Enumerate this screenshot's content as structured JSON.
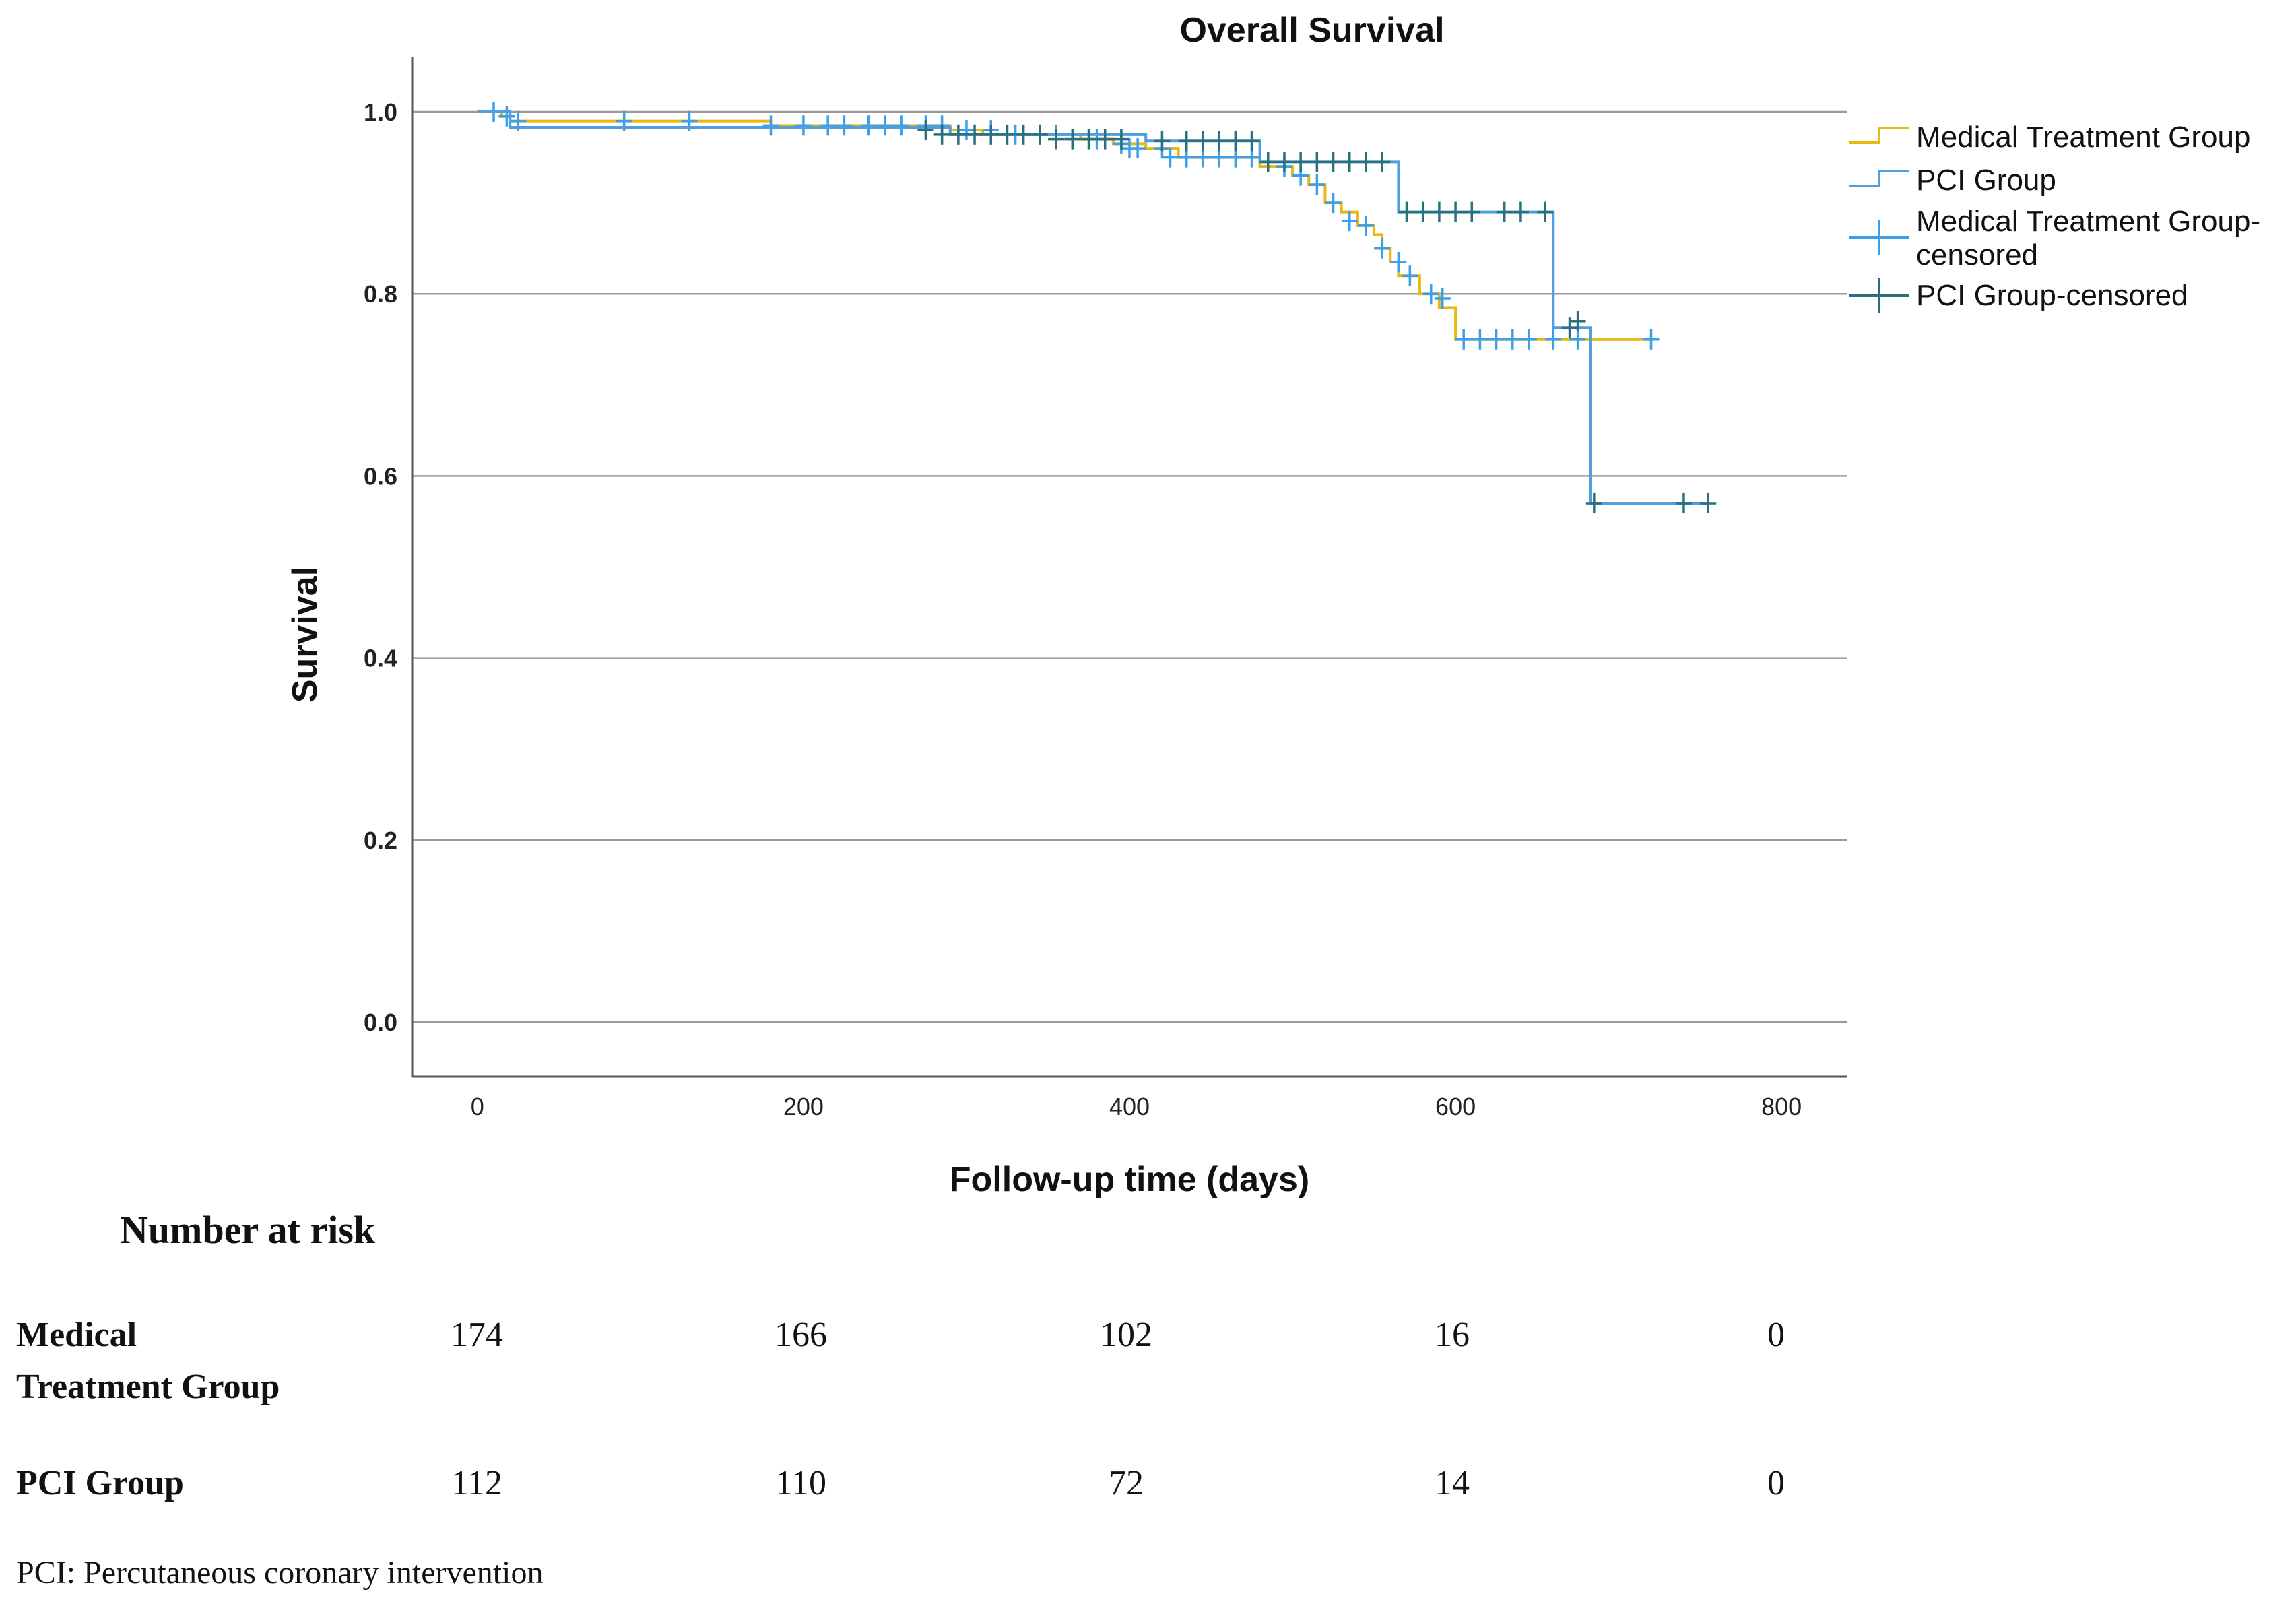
{
  "chart_data": {
    "type": "line",
    "title": "Overall Survival",
    "xlabel": "Follow-up time (days)",
    "ylabel": "Survival",
    "xlim": [
      -40,
      840
    ],
    "ylim": [
      -0.06,
      1.06
    ],
    "x_ticks": [
      0,
      200,
      400,
      600,
      800
    ],
    "x_tick_labels": [
      "0",
      "200",
      "400",
      "600",
      "800"
    ],
    "y_ticks": [
      0.0,
      0.2,
      0.4,
      0.6,
      0.8,
      1.0
    ],
    "y_tick_labels": [
      "0.0",
      "0.2",
      "0.4",
      "0.6",
      "0.8",
      "1.0"
    ],
    "grid": "horizontal",
    "legend_position": "right",
    "legend": [
      {
        "label": "Medical Treatment Group",
        "kind": "line",
        "color": "#e8b80f"
      },
      {
        "label": "PCI Group",
        "kind": "line",
        "color": "#4f9fe0"
      },
      {
        "label": "Medical Treatment Group-censored",
        "kind": "censor",
        "color": "#3aa0ec"
      },
      {
        "label": "PCI Group-censored",
        "kind": "censor",
        "color": "#2a6f7d"
      }
    ],
    "series": [
      {
        "name": "Medical Treatment Group",
        "color": "#e8b80f",
        "censor_color": "#3aa0ec",
        "steps": [
          [
            0,
            1.0
          ],
          [
            15,
            0.995
          ],
          [
            20,
            0.99
          ],
          [
            60,
            0.99
          ],
          [
            90,
            0.99
          ],
          [
            180,
            0.985
          ],
          [
            290,
            0.98
          ],
          [
            310,
            0.975
          ],
          [
            370,
            0.97
          ],
          [
            390,
            0.965
          ],
          [
            410,
            0.96
          ],
          [
            430,
            0.95
          ],
          [
            480,
            0.94
          ],
          [
            500,
            0.93
          ],
          [
            510,
            0.92
          ],
          [
            520,
            0.9
          ],
          [
            530,
            0.89
          ],
          [
            540,
            0.875
          ],
          [
            550,
            0.865
          ],
          [
            555,
            0.85
          ],
          [
            560,
            0.835
          ],
          [
            565,
            0.82
          ],
          [
            578,
            0.8
          ],
          [
            590,
            0.785
          ],
          [
            600,
            0.75
          ],
          [
            720,
            0.75
          ]
        ],
        "censored": [
          [
            10,
            1.0
          ],
          [
            18,
            0.995
          ],
          [
            25,
            0.99
          ],
          [
            90,
            0.99
          ],
          [
            130,
            0.99
          ],
          [
            180,
            0.985
          ],
          [
            200,
            0.985
          ],
          [
            215,
            0.985
          ],
          [
            225,
            0.985
          ],
          [
            240,
            0.985
          ],
          [
            250,
            0.985
          ],
          [
            260,
            0.985
          ],
          [
            275,
            0.985
          ],
          [
            285,
            0.985
          ],
          [
            300,
            0.98
          ],
          [
            315,
            0.98
          ],
          [
            330,
            0.975
          ],
          [
            345,
            0.975
          ],
          [
            355,
            0.975
          ],
          [
            365,
            0.97
          ],
          [
            380,
            0.97
          ],
          [
            395,
            0.965
          ],
          [
            400,
            0.96
          ],
          [
            405,
            0.96
          ],
          [
            420,
            0.96
          ],
          [
            425,
            0.95
          ],
          [
            435,
            0.95
          ],
          [
            445,
            0.95
          ],
          [
            455,
            0.95
          ],
          [
            465,
            0.95
          ],
          [
            475,
            0.95
          ],
          [
            485,
            0.945
          ],
          [
            495,
            0.94
          ],
          [
            505,
            0.93
          ],
          [
            515,
            0.92
          ],
          [
            525,
            0.9
          ],
          [
            535,
            0.88
          ],
          [
            545,
            0.875
          ],
          [
            555,
            0.85
          ],
          [
            565,
            0.835
          ],
          [
            572,
            0.82
          ],
          [
            585,
            0.8
          ],
          [
            592,
            0.795
          ],
          [
            605,
            0.75
          ],
          [
            615,
            0.75
          ],
          [
            625,
            0.75
          ],
          [
            635,
            0.75
          ],
          [
            645,
            0.75
          ],
          [
            660,
            0.75
          ],
          [
            675,
            0.75
          ],
          [
            720,
            0.75
          ]
        ]
      },
      {
        "name": "PCI Group",
        "color": "#4f9fe0",
        "censor_color": "#2a6f7d",
        "steps": [
          [
            0,
            1.0
          ],
          [
            20,
            0.983
          ],
          [
            280,
            0.983
          ],
          [
            290,
            0.975
          ],
          [
            410,
            0.968
          ],
          [
            480,
            0.945
          ],
          [
            565,
            0.945
          ],
          [
            565,
            0.89
          ],
          [
            660,
            0.89
          ],
          [
            660,
            0.763
          ],
          [
            683,
            0.763
          ],
          [
            683,
            0.57
          ],
          [
            755,
            0.57
          ]
        ],
        "censored": [
          [
            275,
            0.98
          ],
          [
            285,
            0.975
          ],
          [
            295,
            0.975
          ],
          [
            305,
            0.975
          ],
          [
            315,
            0.975
          ],
          [
            325,
            0.975
          ],
          [
            335,
            0.975
          ],
          [
            345,
            0.975
          ],
          [
            355,
            0.97
          ],
          [
            365,
            0.97
          ],
          [
            375,
            0.97
          ],
          [
            385,
            0.97
          ],
          [
            395,
            0.97
          ],
          [
            420,
            0.968
          ],
          [
            435,
            0.968
          ],
          [
            445,
            0.968
          ],
          [
            455,
            0.968
          ],
          [
            465,
            0.968
          ],
          [
            475,
            0.968
          ],
          [
            485,
            0.945
          ],
          [
            495,
            0.945
          ],
          [
            505,
            0.945
          ],
          [
            515,
            0.945
          ],
          [
            525,
            0.945
          ],
          [
            535,
            0.945
          ],
          [
            545,
            0.945
          ],
          [
            555,
            0.945
          ],
          [
            570,
            0.89
          ],
          [
            580,
            0.89
          ],
          [
            590,
            0.89
          ],
          [
            600,
            0.89
          ],
          [
            610,
            0.89
          ],
          [
            630,
            0.89
          ],
          [
            640,
            0.89
          ],
          [
            655,
            0.89
          ],
          [
            670,
            0.763
          ],
          [
            675,
            0.77
          ],
          [
            685,
            0.57
          ],
          [
            740,
            0.57
          ],
          [
            755,
            0.57
          ]
        ]
      }
    ]
  },
  "risk_table": {
    "title": "Number at risk",
    "rows": [
      {
        "label_line1": "Medical",
        "label_line2": "Treatment Group",
        "values": [
          "174",
          "166",
          "102",
          "16",
          "0"
        ]
      },
      {
        "label_line1": "PCI Group",
        "label_line2": "",
        "values": [
          "112",
          "110",
          "72",
          "14",
          "0"
        ]
      }
    ]
  },
  "footnote": "PCI: Percutaneous coronary intervention"
}
